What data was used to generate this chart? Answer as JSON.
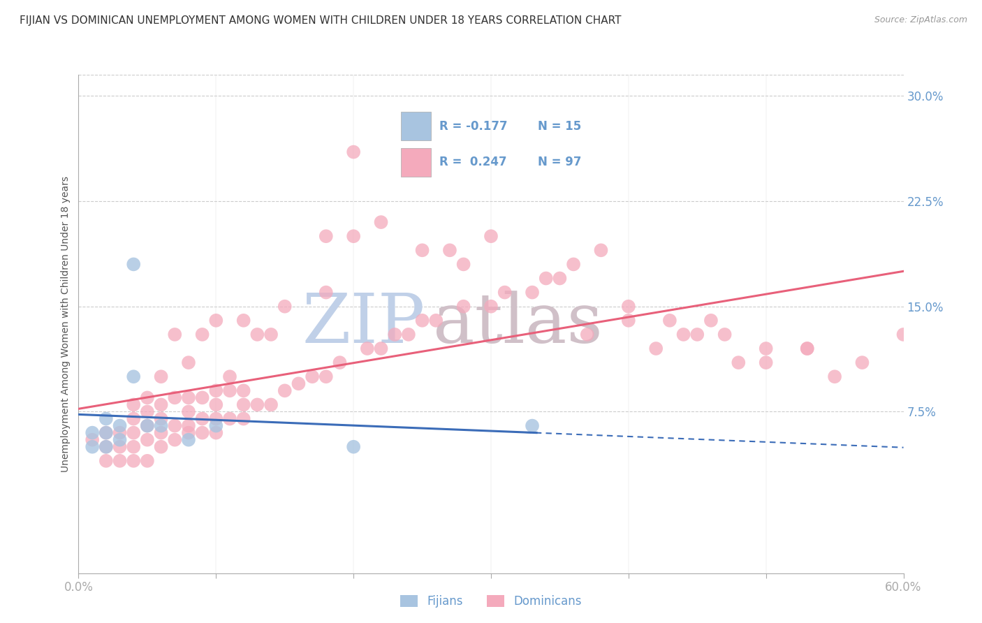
{
  "title": "FIJIAN VS DOMINICAN UNEMPLOYMENT AMONG WOMEN WITH CHILDREN UNDER 18 YEARS CORRELATION CHART",
  "source": "Source: ZipAtlas.com",
  "ylabel": "Unemployment Among Women with Children Under 18 years",
  "xlim": [
    0.0,
    0.6
  ],
  "ylim": [
    -0.04,
    0.315
  ],
  "xticks": [
    0.0,
    0.1,
    0.2,
    0.3,
    0.4,
    0.5,
    0.6
  ],
  "xticklabels": [
    "0.0%",
    "",
    "",
    "",
    "",
    "",
    "60.0%"
  ],
  "yticks_right": [
    0.075,
    0.15,
    0.225,
    0.3
  ],
  "ytick_right_labels": [
    "7.5%",
    "15.0%",
    "22.5%",
    "30.0%"
  ],
  "fijian_color": "#A8C4E0",
  "dominican_color": "#F4AABC",
  "fijian_line_color": "#3B6CB8",
  "dominican_line_color": "#E8607A",
  "background_color": "#FFFFFF",
  "grid_color": "#CCCCCC",
  "title_color": "#333333",
  "axis_label_color": "#555555",
  "tick_color": "#6699CC",
  "legend_fijian_R": "-0.177",
  "legend_fijian_N": "15",
  "legend_dominican_R": "0.247",
  "legend_dominican_N": "97",
  "fijian_x": [
    0.01,
    0.01,
    0.02,
    0.02,
    0.02,
    0.03,
    0.03,
    0.04,
    0.04,
    0.05,
    0.06,
    0.08,
    0.1,
    0.2,
    0.33
  ],
  "fijian_y": [
    0.05,
    0.06,
    0.05,
    0.06,
    0.07,
    0.055,
    0.065,
    0.18,
    0.1,
    0.065,
    0.065,
    0.055,
    0.065,
    0.05,
    0.065
  ],
  "dominican_x": [
    0.01,
    0.02,
    0.02,
    0.02,
    0.03,
    0.03,
    0.03,
    0.04,
    0.04,
    0.04,
    0.04,
    0.04,
    0.05,
    0.05,
    0.05,
    0.05,
    0.05,
    0.06,
    0.06,
    0.06,
    0.06,
    0.06,
    0.07,
    0.07,
    0.07,
    0.07,
    0.08,
    0.08,
    0.08,
    0.08,
    0.08,
    0.09,
    0.09,
    0.09,
    0.09,
    0.1,
    0.1,
    0.1,
    0.1,
    0.1,
    0.11,
    0.11,
    0.11,
    0.12,
    0.12,
    0.12,
    0.12,
    0.13,
    0.13,
    0.14,
    0.14,
    0.15,
    0.15,
    0.16,
    0.17,
    0.18,
    0.18,
    0.19,
    0.2,
    0.21,
    0.22,
    0.23,
    0.24,
    0.25,
    0.26,
    0.27,
    0.28,
    0.3,
    0.31,
    0.33,
    0.35,
    0.37,
    0.4,
    0.42,
    0.44,
    0.46,
    0.48,
    0.5,
    0.53,
    0.55,
    0.57,
    0.6,
    0.18,
    0.2,
    0.22,
    0.25,
    0.28,
    0.3,
    0.34,
    0.36,
    0.38,
    0.4,
    0.43,
    0.45,
    0.47,
    0.5,
    0.53
  ],
  "dominican_y": [
    0.055,
    0.04,
    0.05,
    0.06,
    0.04,
    0.05,
    0.06,
    0.04,
    0.05,
    0.06,
    0.07,
    0.08,
    0.04,
    0.055,
    0.065,
    0.075,
    0.085,
    0.05,
    0.06,
    0.07,
    0.08,
    0.1,
    0.055,
    0.065,
    0.085,
    0.13,
    0.06,
    0.065,
    0.075,
    0.085,
    0.11,
    0.06,
    0.07,
    0.085,
    0.13,
    0.06,
    0.07,
    0.08,
    0.09,
    0.14,
    0.07,
    0.09,
    0.1,
    0.07,
    0.08,
    0.09,
    0.14,
    0.08,
    0.13,
    0.08,
    0.13,
    0.09,
    0.15,
    0.095,
    0.1,
    0.1,
    0.16,
    0.11,
    0.26,
    0.12,
    0.12,
    0.13,
    0.13,
    0.14,
    0.14,
    0.19,
    0.15,
    0.15,
    0.16,
    0.16,
    0.17,
    0.13,
    0.14,
    0.12,
    0.13,
    0.14,
    0.11,
    0.11,
    0.12,
    0.1,
    0.11,
    0.13,
    0.2,
    0.2,
    0.21,
    0.19,
    0.18,
    0.2,
    0.17,
    0.18,
    0.19,
    0.15,
    0.14,
    0.13,
    0.13,
    0.12,
    0.12
  ],
  "watermark_zip": "ZIP",
  "watermark_atlas": "atlas",
  "watermark_color_zip": "#C0D0E8",
  "watermark_color_atlas": "#D0C0C8"
}
